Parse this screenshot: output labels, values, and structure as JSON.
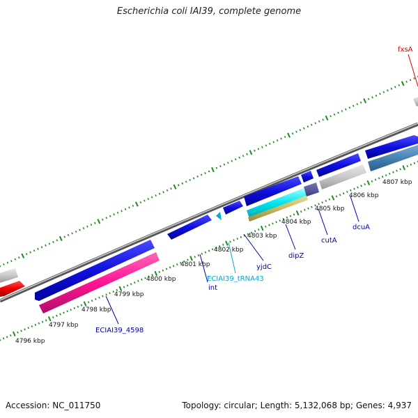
{
  "title": "Escherichia coli IAI39, complete genome",
  "footer": {
    "accession": "Accession: NC_011750",
    "summary": "Topology: circular; Length: 5,132,068 bp; Genes: 4,937"
  },
  "colors": {
    "background": "#ffffff",
    "forward_gene": "#1010dd",
    "reverse_gene": "#c8c8c8",
    "pseudo_gene": "#ff1493",
    "trna": "#00e5ee",
    "rrna_like": "#c8b860",
    "misc": "#4682b4",
    "backbone": "#888888",
    "tick": "#1a8a1a",
    "label_blue": "#0000aa",
    "label_cyan": "#00aacc",
    "label_red": "#dd0000"
  },
  "scale_ticks": [
    "4796 kbp",
    "4797 kbp",
    "4798 kbp",
    "4799 kbp",
    "4800 kbp",
    "4801 kbp",
    "4802 kbp",
    "4803 kbp",
    "4804 kbp",
    "4805 kbp",
    "4806 kbp",
    "4807 kbp"
  ],
  "gene_labels": [
    {
      "id": "eciai39_4598",
      "text": "ECIAI39_4598"
    },
    {
      "id": "int",
      "text": "int"
    },
    {
      "id": "eciai39_trna43",
      "text": "ECIAI39_tRNA43"
    },
    {
      "id": "yjdc",
      "text": "yjdC"
    },
    {
      "id": "dipz",
      "text": "dipZ"
    },
    {
      "id": "cuta",
      "text": "cutA"
    },
    {
      "id": "dcua",
      "text": "dcuA"
    },
    {
      "id": "fxsa",
      "text": "fxsA"
    }
  ]
}
